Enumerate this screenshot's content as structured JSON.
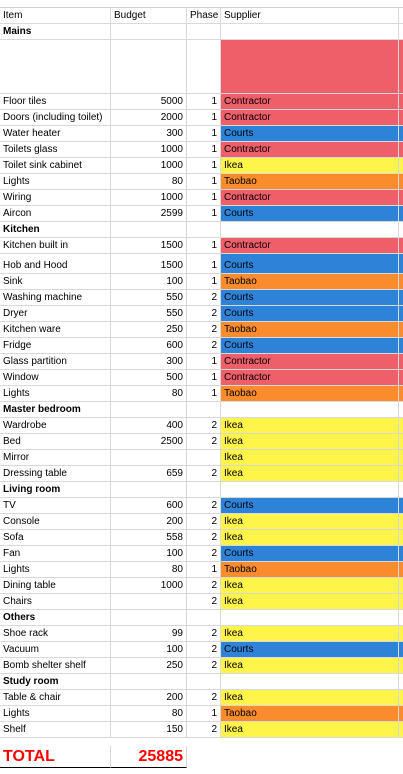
{
  "columns": {
    "item": "Item",
    "budget": "Budget",
    "phase": "Phase",
    "supplier": "Supplier"
  },
  "colors": {
    "Contractor": "#ee5f6a",
    "Courts": "#2d83d8",
    "Ikea": "#fff44a",
    "Taobao": "#fb8c2d"
  },
  "rows": [
    {
      "type": "section",
      "item": "Mains"
    },
    {
      "type": "spacer",
      "color": "Contractor"
    },
    {
      "type": "item",
      "item": "Floor tiles",
      "budget": "5000",
      "phase": "1",
      "supplier": "Contractor"
    },
    {
      "type": "item",
      "item": "Doors (including toilet)",
      "budget": "2000",
      "phase": "1",
      "supplier": "Contractor"
    },
    {
      "type": "item",
      "item": "Water heater",
      "budget": "300",
      "phase": "1",
      "supplier": "Courts"
    },
    {
      "type": "item",
      "item": "Toilets glass",
      "budget": "1000",
      "phase": "1",
      "supplier": "Contractor"
    },
    {
      "type": "item",
      "item": "Toilet sink cabinet",
      "budget": "1000",
      "phase": "1",
      "supplier": "Ikea"
    },
    {
      "type": "item",
      "item": "Lights",
      "budget": "80",
      "phase": "1",
      "supplier": "Taobao"
    },
    {
      "type": "item",
      "item": "Wiring",
      "budget": "1000",
      "phase": "1",
      "supplier": "Contractor"
    },
    {
      "type": "item",
      "item": "Aircon",
      "budget": "2599",
      "phase": "1",
      "supplier": "Courts"
    },
    {
      "type": "section",
      "item": "Kitchen"
    },
    {
      "type": "item",
      "item": "Kitchen built in",
      "budget": "1500",
      "phase": "1",
      "supplier": "Contractor"
    },
    {
      "type": "item",
      "item": "Hob and Hood",
      "budget": "1500",
      "phase": "1",
      "supplier": "Courts",
      "tall": true
    },
    {
      "type": "item",
      "item": "Sink",
      "budget": "100",
      "phase": "1",
      "supplier": "Taobao"
    },
    {
      "type": "item",
      "item": "Washing machine",
      "budget": "550",
      "phase": "2",
      "supplier": "Courts"
    },
    {
      "type": "item",
      "item": "Dryer",
      "budget": "550",
      "phase": "2",
      "supplier": "Courts"
    },
    {
      "type": "item",
      "item": "Kitchen ware",
      "budget": "250",
      "phase": "2",
      "supplier": "Taobao"
    },
    {
      "type": "item",
      "item": "Fridge",
      "budget": "600",
      "phase": "2",
      "supplier": "Courts"
    },
    {
      "type": "item",
      "item": "Glass partition",
      "budget": "300",
      "phase": "1",
      "supplier": "Contractor"
    },
    {
      "type": "item",
      "item": "Window",
      "budget": "500",
      "phase": "1",
      "supplier": "Contractor"
    },
    {
      "type": "item",
      "item": "Lights",
      "budget": "80",
      "phase": "1",
      "supplier": "Taobao"
    },
    {
      "type": "section",
      "item": "Master bedroom"
    },
    {
      "type": "item",
      "item": "Wardrobe",
      "budget": "400",
      "phase": "2",
      "supplier": "Ikea"
    },
    {
      "type": "item",
      "item": "Bed",
      "budget": "2500",
      "phase": "2",
      "supplier": "Ikea"
    },
    {
      "type": "item",
      "item": "Mirror",
      "budget": "",
      "phase": "",
      "supplier": "Ikea"
    },
    {
      "type": "item",
      "item": "Dressing table",
      "budget": "659",
      "phase": "2",
      "supplier": "Ikea"
    },
    {
      "type": "section",
      "item": "Living room"
    },
    {
      "type": "item",
      "item": "TV",
      "budget": "600",
      "phase": "2",
      "supplier": "Courts"
    },
    {
      "type": "item",
      "item": "Console",
      "budget": "200",
      "phase": "2",
      "supplier": "Ikea"
    },
    {
      "type": "item",
      "item": "Sofa",
      "budget": "558",
      "phase": "2",
      "supplier": "Ikea"
    },
    {
      "type": "item",
      "item": "Fan",
      "budget": "100",
      "phase": "2",
      "supplier": "Courts"
    },
    {
      "type": "item",
      "item": "Lights",
      "budget": "80",
      "phase": "1",
      "supplier": "Taobao"
    },
    {
      "type": "item",
      "item": "Dining table",
      "budget": "1000",
      "phase": "2",
      "supplier": "Ikea"
    },
    {
      "type": "item",
      "item": "Chairs",
      "budget": "",
      "phase": "2",
      "supplier": "Ikea"
    },
    {
      "type": "section",
      "item": "Others"
    },
    {
      "type": "item",
      "item": "Shoe rack",
      "budget": "99",
      "phase": "2",
      "supplier": "Ikea"
    },
    {
      "type": "item",
      "item": "Vacuum",
      "budget": "100",
      "phase": "2",
      "supplier": "Courts"
    },
    {
      "type": "item",
      "item": "Bomb shelter shelf",
      "budget": "250",
      "phase": "2",
      "supplier": "Ikea"
    },
    {
      "type": "section",
      "item": "Study room"
    },
    {
      "type": "item",
      "item": "Table & chair",
      "budget": "200",
      "phase": "2",
      "supplier": "Ikea"
    },
    {
      "type": "item",
      "item": "Lights",
      "budget": "80",
      "phase": "1",
      "supplier": "Taobao"
    },
    {
      "type": "item",
      "item": "Shelf",
      "budget": "150",
      "phase": "2",
      "supplier": "Ikea"
    }
  ],
  "total": {
    "label": "TOTAL",
    "value": "25885"
  }
}
